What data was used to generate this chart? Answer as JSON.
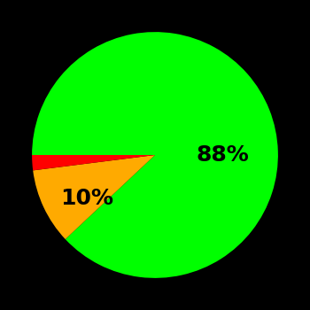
{
  "slices": [
    88,
    10,
    2
  ],
  "colors": [
    "#00ff00",
    "#ffaa00",
    "#ff0000"
  ],
  "labels": [
    "88%",
    "10%",
    ""
  ],
  "label_angles_deg": [
    30,
    210,
    999
  ],
  "label_radii": [
    0.6,
    0.55,
    0
  ],
  "background_color": "#000000",
  "text_color": "#000000",
  "label_fontsize": 18,
  "label_fontweight": "bold",
  "startangle": 180,
  "counterclock": false,
  "figsize": [
    3.5,
    3.5
  ],
  "dpi": 100
}
